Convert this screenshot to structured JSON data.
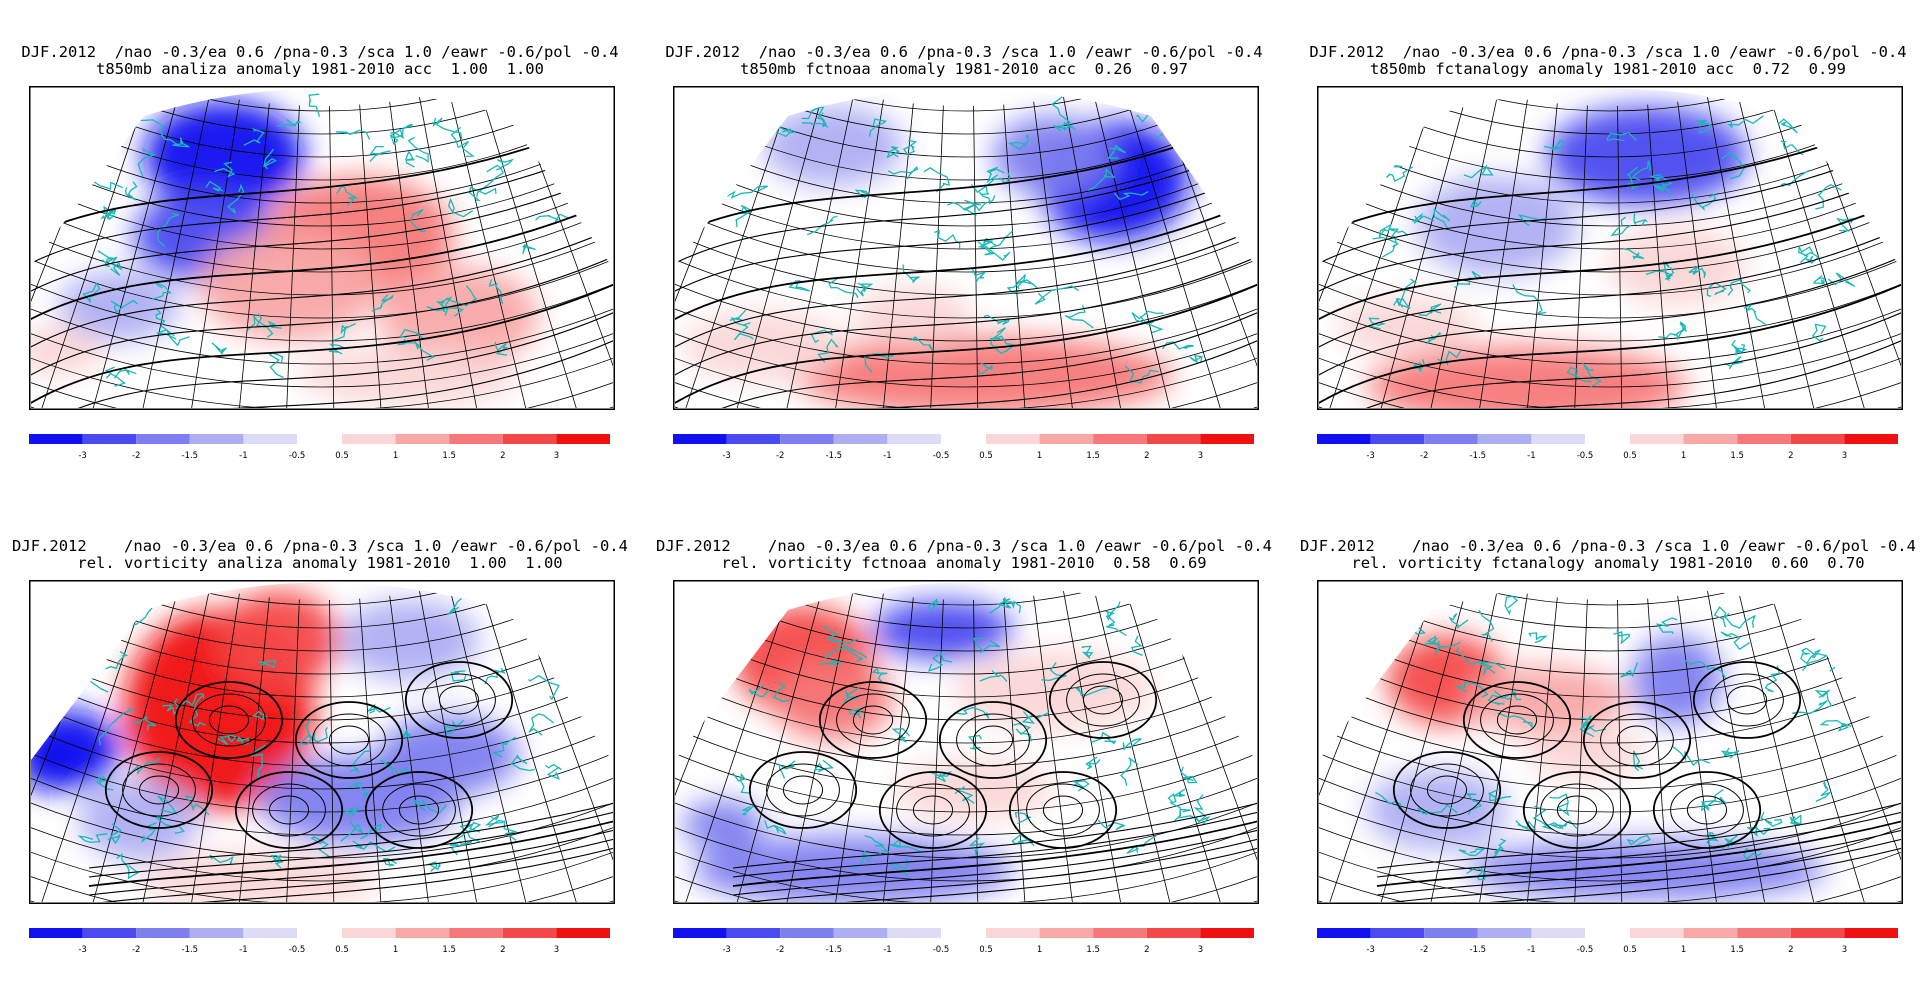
{
  "colorbar": {
    "negative_labels": [
      "-3",
      "-2",
      "-1.5",
      "-1",
      "-0.5"
    ],
    "positive_labels": [
      "0.5",
      "1",
      "1.5",
      "2",
      "3"
    ],
    "negative_colors": [
      "#1010f0",
      "#4a4af0",
      "#7e7ef0",
      "#aeaef3",
      "#dcdcf7"
    ],
    "positive_colors": [
      "#fbd6d6",
      "#f9a8a8",
      "#f77878",
      "#f44848",
      "#f01010"
    ]
  },
  "panels": [
    {
      "line1": "DJF.2012  /nao -0.3/ea 0.6 /pna-0.3 /sca 1.0 /eawr -0.6/pol -0.4",
      "line2": "t850mb analiza anomaly 1981-2010 acc  1.00  1.00",
      "field": "t850"
    },
    {
      "line1": "DJF.2012  /nao -0.3/ea 0.6 /pna-0.3 /sca 1.0 /eawr -0.6/pol -0.4",
      "line2": "t850mb fctnoaa anomaly 1981-2010 acc  0.26  0.97",
      "field": "t850"
    },
    {
      "line1": "DJF.2012  /nao -0.3/ea 0.6 /pna-0.3 /sca 1.0 /eawr -0.6/pol -0.4",
      "line2": "t850mb fctanalogy anomaly 1981-2010 acc  0.72  0.99",
      "field": "t850"
    },
    {
      "line1": "DJF.2012    /nao -0.3/ea 0.6 /pna-0.3 /sca 1.0 /eawr -0.6/pol -0.4",
      "line2": "rel. vorticity analiza anomaly 1981-2010  1.00  1.00",
      "field": "vorticity"
    },
    {
      "line1": "DJF.2012    /nao -0.3/ea 0.6 /pna-0.3 /sca 1.0 /eawr -0.6/pol -0.4",
      "line2": "rel. vorticity fctnoaa anomaly 1981-2010  0.58  0.69",
      "field": "vorticity"
    },
    {
      "line1": "DJF.2012    /nao -0.3/ea 0.6 /pna-0.3 /sca 1.0 /eawr -0.6/pol -0.4",
      "line2": "rel. vorticity fctanalogy anomaly 1981-2010  0.60  0.70",
      "field": "vorticity"
    }
  ]
}
